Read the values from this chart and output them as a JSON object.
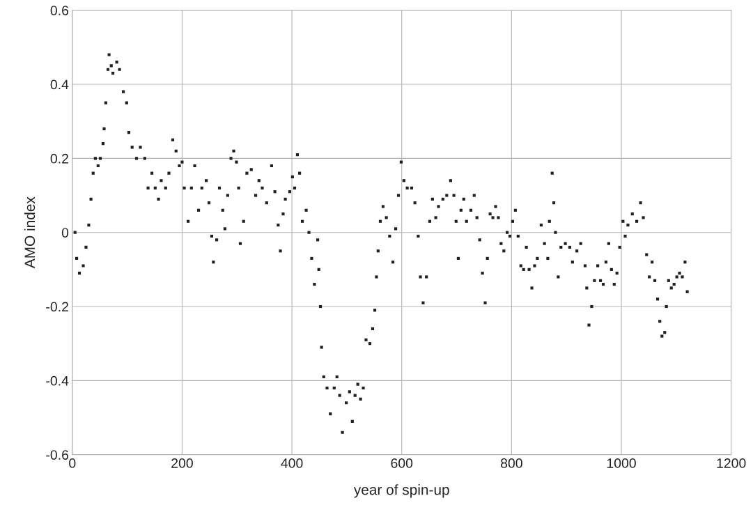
{
  "chart_data": {
    "type": "scatter",
    "xlabel": "year of spin-up",
    "ylabel": "AMO index",
    "xlim": [
      0,
      1200
    ],
    "xticks": [
      0,
      200,
      400,
      600,
      800,
      1000,
      1200
    ],
    "ylim": [
      -0.6,
      0.6
    ],
    "yticks": [
      -0.6,
      -0.4,
      -0.2,
      0,
      0.2,
      0.4,
      0.6
    ],
    "grid": true,
    "marker": "square",
    "series": [
      {
        "color": "#231f20",
        "x": [
          5,
          8,
          13,
          20,
          25,
          30,
          34,
          38,
          42,
          47,
          51,
          56,
          58,
          61,
          65,
          67,
          71,
          74,
          81,
          86,
          93,
          99,
          103,
          109,
          117,
          124,
          132,
          138,
          145,
          151,
          157,
          162,
          170,
          176,
          183,
          189,
          195,
          200,
          204,
          211,
          217,
          223,
          230,
          236,
          244,
          249,
          254,
          257,
          263,
          268,
          274,
          278,
          283,
          289,
          294,
          299,
          303,
          306,
          312,
          318,
          326,
          334,
          340,
          346,
          354,
          363,
          369,
          375,
          379,
          384,
          388,
          396,
          401,
          405,
          410,
          414,
          419,
          426,
          431,
          436,
          441,
          447,
          449,
          452,
          454,
          458,
          464,
          470,
          477,
          482,
          487,
          492,
          499,
          505,
          510,
          515,
          520,
          525,
          530,
          535,
          542,
          547,
          551,
          554,
          557,
          561,
          566,
          572,
          578,
          584,
          589,
          594,
          599,
          604,
          610,
          618,
          624,
          630,
          634,
          639,
          645,
          651,
          656,
          662,
          667,
          675,
          682,
          689,
          695,
          699,
          703,
          708,
          713,
          718,
          726,
          732,
          737,
          742,
          747,
          752,
          756,
          761,
          766,
          771,
          776,
          781,
          786,
          792,
          797,
          802,
          807,
          812,
          817,
          822,
          827,
          832,
          837,
          842,
          847,
          854,
          860,
          866,
          869,
          874,
          877,
          880,
          885,
          890,
          898,
          906,
          911,
          919,
          926,
          934,
          937,
          941,
          946,
          951,
          957,
          962,
          967,
          972,
          977,
          982,
          987,
          992,
          997,
          1003,
          1007,
          1012,
          1020,
          1028,
          1035,
          1040,
          1046,
          1051,
          1056,
          1061,
          1066,
          1070,
          1074,
          1079,
          1082,
          1086,
          1091,
          1096,
          1101,
          1106,
          1111,
          1116,
          1120
        ],
        "values": [
          0.0,
          -0.07,
          -0.11,
          -0.09,
          -0.04,
          0.02,
          0.09,
          0.16,
          0.2,
          0.18,
          0.2,
          0.24,
          0.28,
          0.35,
          0.44,
          0.48,
          0.45,
          0.43,
          0.46,
          0.44,
          0.38,
          0.35,
          0.27,
          0.23,
          0.2,
          0.23,
          0.2,
          0.12,
          0.16,
          0.12,
          0.09,
          0.14,
          0.12,
          0.16,
          0.25,
          0.22,
          0.18,
          0.19,
          0.12,
          0.03,
          0.12,
          0.18,
          0.06,
          0.12,
          0.14,
          0.08,
          -0.01,
          -0.08,
          -0.02,
          0.12,
          0.06,
          0.01,
          0.1,
          0.2,
          0.22,
          0.19,
          0.12,
          -0.03,
          0.03,
          0.16,
          0.17,
          0.1,
          0.14,
          0.12,
          0.08,
          0.18,
          0.11,
          0.02,
          -0.05,
          0.05,
          0.09,
          0.11,
          0.15,
          0.12,
          0.21,
          0.16,
          0.03,
          0.06,
          0.0,
          -0.07,
          -0.14,
          -0.02,
          -0.1,
          -0.2,
          -0.31,
          -0.39,
          -0.42,
          -0.49,
          -0.42,
          -0.39,
          -0.44,
          -0.54,
          -0.46,
          -0.43,
          -0.51,
          -0.44,
          -0.41,
          -0.45,
          -0.42,
          -0.29,
          -0.3,
          -0.26,
          -0.21,
          -0.12,
          -0.05,
          0.03,
          0.07,
          0.04,
          -0.01,
          -0.08,
          0.01,
          0.1,
          0.19,
          0.14,
          0.12,
          0.12,
          0.08,
          -0.01,
          -0.12,
          -0.19,
          -0.12,
          0.03,
          0.09,
          0.04,
          0.07,
          0.09,
          0.1,
          0.14,
          0.1,
          0.03,
          -0.07,
          0.06,
          0.09,
          0.03,
          0.06,
          0.1,
          0.04,
          -0.02,
          -0.11,
          -0.19,
          -0.07,
          0.05,
          0.04,
          0.07,
          0.04,
          -0.03,
          -0.05,
          0.0,
          -0.01,
          0.03,
          0.06,
          -0.01,
          -0.09,
          -0.1,
          -0.04,
          -0.1,
          -0.15,
          -0.09,
          -0.07,
          0.02,
          -0.03,
          -0.07,
          0.03,
          0.16,
          0.08,
          0.0,
          -0.12,
          -0.04,
          -0.03,
          -0.04,
          -0.08,
          -0.05,
          -0.03,
          -0.09,
          -0.15,
          -0.25,
          -0.2,
          -0.13,
          -0.09,
          -0.13,
          -0.14,
          -0.08,
          -0.03,
          -0.1,
          -0.14,
          -0.11,
          -0.04,
          0.03,
          -0.01,
          0.02,
          0.05,
          0.03,
          0.08,
          0.04,
          -0.06,
          -0.12,
          -0.08,
          -0.13,
          -0.18,
          -0.24,
          -0.28,
          -0.27,
          -0.2,
          -0.13,
          -0.15,
          -0.14,
          -0.12,
          -0.11,
          -0.12,
          -0.08,
          -0.16
        ]
      }
    ]
  }
}
